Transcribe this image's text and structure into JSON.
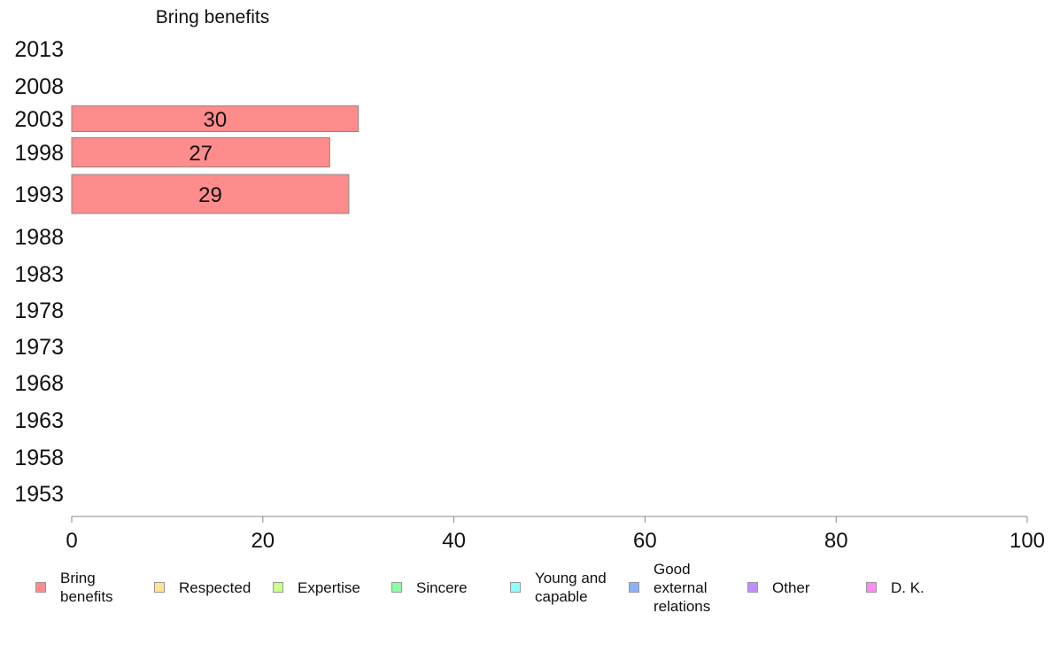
{
  "chart_data": {
    "type": "bar",
    "orientation": "horizontal",
    "title": "Bring benefits",
    "categories": [
      "2013",
      "2008",
      "2003",
      "1998",
      "1993",
      "1988",
      "1983",
      "1978",
      "1973",
      "1968",
      "1963",
      "1958",
      "1953"
    ],
    "series": [
      {
        "name": "Bring benefits",
        "color": "#ff8c8c",
        "values": [
          null,
          null,
          30,
          27,
          29,
          null,
          null,
          null,
          null,
          null,
          null,
          null,
          null
        ]
      }
    ],
    "data_labels": [
      "30",
      "27",
      "29"
    ],
    "xlim": [
      0,
      100
    ],
    "xticks": [
      0,
      20,
      40,
      60,
      80,
      100
    ],
    "xlabel": "",
    "ylabel": "",
    "grid": false,
    "legend_position": "bottom"
  },
  "legend": [
    {
      "label": "Bring\nbenefits",
      "color": "#ff8c8c"
    },
    {
      "label": "Respected",
      "color": "#ffe58c"
    },
    {
      "label": "Expertise",
      "color": "#ccff8c"
    },
    {
      "label": "Sincere",
      "color": "#8cffa5"
    },
    {
      "label": "Young and\ncapable",
      "color": "#8cffff"
    },
    {
      "label": "Good\nexternal\nrelations",
      "color": "#8cb2ff"
    },
    {
      "label": "Other",
      "color": "#c08cff"
    },
    {
      "label": "D. K.",
      "color": "#ff8cf0"
    }
  ]
}
